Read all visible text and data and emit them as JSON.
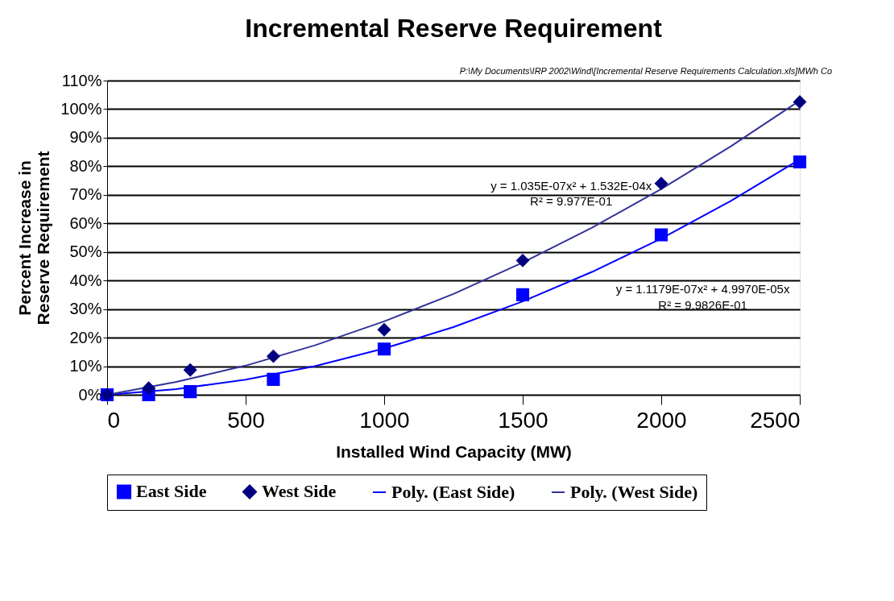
{
  "chart_data": {
    "type": "scatter",
    "title": "Incremental Reserve Requirement",
    "xlabel": "Installed Wind Capacity (MW)",
    "ylabel": "Percent Increase in Reserve Requirement",
    "xlim": [
      0,
      2500
    ],
    "xticks": [
      0,
      500,
      1000,
      1500,
      2000,
      2500
    ],
    "ylim": [
      0,
      110
    ],
    "yticks": [
      {
        "value": 0,
        "label": "0%"
      },
      {
        "value": 10,
        "label": "10%"
      },
      {
        "value": 20,
        "label": "20%"
      },
      {
        "value": 30,
        "label": "30%"
      },
      {
        "value": 40,
        "label": "40%"
      },
      {
        "value": 50,
        "label": "50%"
      },
      {
        "value": 60,
        "label": "60%"
      },
      {
        "value": 70,
        "label": "70%"
      },
      {
        "value": 80,
        "label": "80%"
      },
      {
        "value": 90,
        "label": "90%"
      },
      {
        "value": 100,
        "label": "100%"
      },
      {
        "value": 110,
        "label": "110%"
      }
    ],
    "grid": "y",
    "legend": "bottom",
    "series": [
      {
        "name": "East Side",
        "marker": "square",
        "color": "#0000ff",
        "x": [
          0,
          150,
          300,
          600,
          1000,
          1500,
          2000,
          2500
        ],
        "values": [
          0,
          0,
          1.1,
          5.4,
          16,
          35,
          56,
          81.5
        ]
      },
      {
        "name": "West Side",
        "marker": "diamond",
        "color": "#000080",
        "x": [
          0,
          150,
          300,
          600,
          1000,
          1500,
          2000,
          2500
        ],
        "values": [
          0,
          2.3,
          8.7,
          13.5,
          22.8,
          47,
          74,
          102.5
        ]
      },
      {
        "name": "Poly. (East Side)",
        "type": "line",
        "marker": "none",
        "line_style": "solid",
        "color": "#0000ff",
        "x": [
          0,
          250,
          500,
          750,
          1000,
          1250,
          1500,
          1750,
          2000,
          2250,
          2500
        ],
        "values": [
          0,
          2,
          5.3,
          10,
          16.2,
          23.7,
          32.7,
          43,
          54.7,
          67.8,
          82.4
        ]
      },
      {
        "name": "Poly. (West Side)",
        "type": "line",
        "marker": "none",
        "line_style": "solid",
        "color": "#333399",
        "x": [
          0,
          250,
          500,
          750,
          1000,
          1250,
          1500,
          1750,
          2000,
          2250,
          2500
        ],
        "values": [
          0,
          4.5,
          10.2,
          17.3,
          25.7,
          35.3,
          46.3,
          58.5,
          72,
          86.9,
          103
        ]
      }
    ],
    "annotations": [
      "y = 1.035E-07x² + 1.532E-04x",
      "R² = 9.977E-01",
      "y = 1.1179E-07x² + 4.9970E-05x",
      "R² = 9.9826E-01",
      "P:\\My Documents\\IRP 2002\\Wind\\[Incremental Reserve Requirements Calculation.xls]MWh Co"
    ]
  }
}
